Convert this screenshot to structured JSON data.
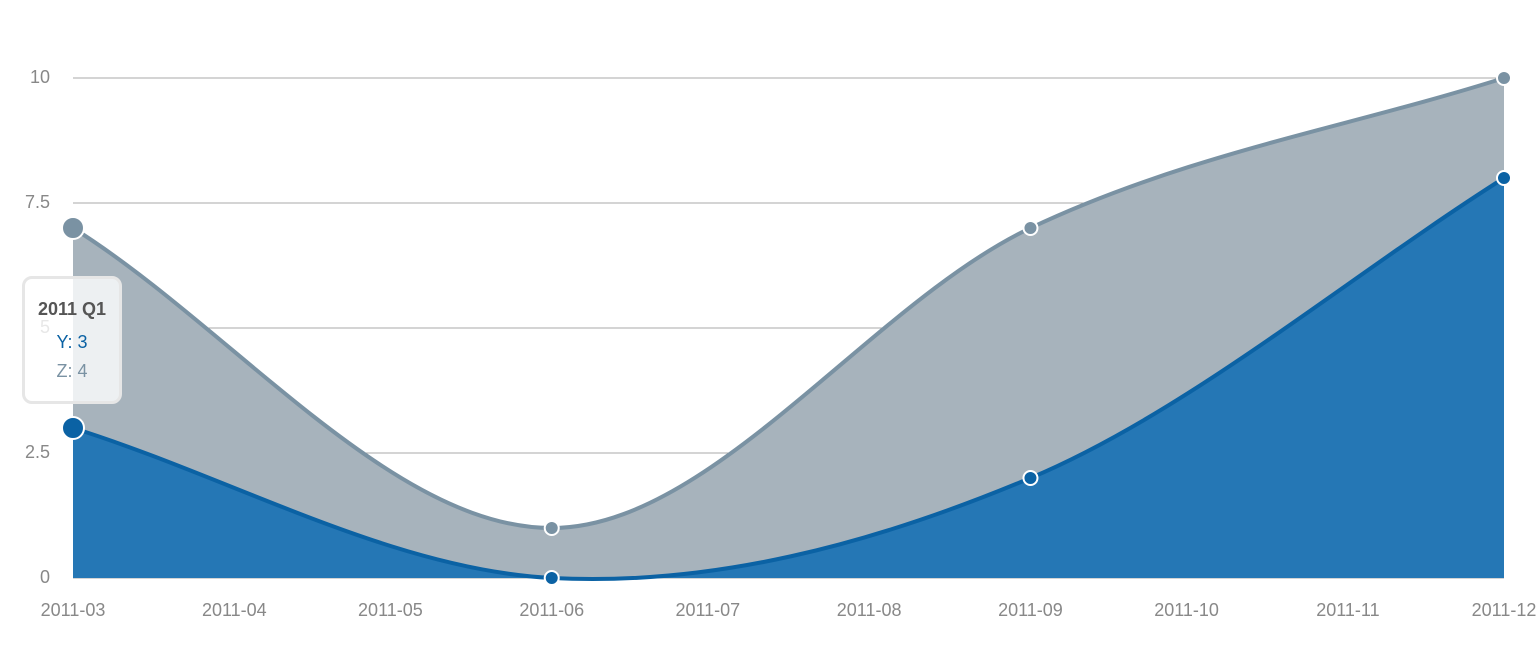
{
  "chart_data": {
    "type": "area",
    "x": [
      "2011-03",
      "2011-06",
      "2011-09",
      "2011-12"
    ],
    "series": [
      {
        "name": "Y",
        "color": "#0b62a4",
        "fill": "#2577b5",
        "values": [
          3,
          0,
          2,
          8
        ]
      },
      {
        "name": "Z",
        "color": "#7a92a3",
        "fill": "#a7b3bc",
        "values": [
          4,
          1,
          5,
          2
        ]
      }
    ],
    "stacked": true,
    "xlim": [
      "2011-03",
      "2011-12"
    ],
    "xticks": [
      "2011-03",
      "2011-04",
      "2011-05",
      "2011-06",
      "2011-07",
      "2011-08",
      "2011-09",
      "2011-10",
      "2011-11",
      "2011-12"
    ],
    "ylim": [
      0,
      10
    ],
    "yticks": [
      0,
      2.5,
      5,
      7.5,
      10
    ],
    "grid": true,
    "tooltip": {
      "title": "2011 Q1",
      "items": [
        {
          "label": "Y:",
          "value": 3
        },
        {
          "label": "Z:",
          "value": 4
        }
      ]
    }
  }
}
